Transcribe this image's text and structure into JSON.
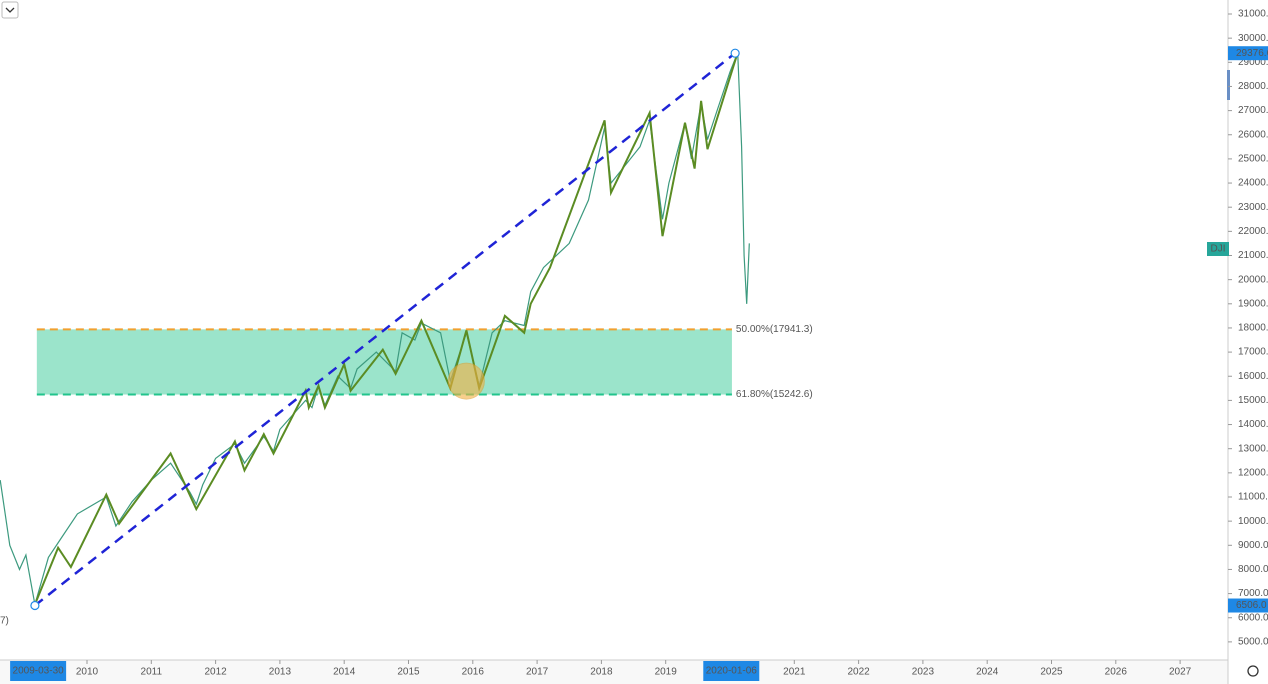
{
  "chart_data": {
    "type": "line",
    "xlim": [
      2008.647,
      2027.745
    ],
    "ylim": [
      4250,
      31580
    ],
    "xticks": [
      2010,
      2011,
      2012,
      2013,
      2014,
      2015,
      2016,
      2017,
      2018,
      2019,
      2021,
      2022,
      2023,
      2024,
      2025,
      2026,
      2027
    ],
    "yticks": [
      {
        "value": 5000,
        "label": "5000.0"
      },
      {
        "value": 6000,
        "label": "6000.0"
      },
      {
        "value": 7000,
        "label": "7000.0"
      },
      {
        "value": 8000,
        "label": "8000.0"
      },
      {
        "value": 9000,
        "label": "9000.0"
      },
      {
        "value": 10000,
        "label": "10000.0"
      },
      {
        "value": 11000,
        "label": "11000.0"
      },
      {
        "value": 12000,
        "label": "12000.0"
      },
      {
        "value": 13000,
        "label": "13000.0"
      },
      {
        "value": 14000,
        "label": "14000.0"
      },
      {
        "value": 15000,
        "label": "15000.0"
      },
      {
        "value": 16000,
        "label": "16000.0"
      },
      {
        "value": 17000,
        "label": "17000.0"
      },
      {
        "value": 18000,
        "label": "18000.0"
      },
      {
        "value": 19000,
        "label": "19000.0"
      },
      {
        "value": 20000,
        "label": "20000.0"
      },
      {
        "value": 21000,
        "label": "21000.0"
      },
      {
        "value": 22000,
        "label": "22000.0"
      },
      {
        "value": 23000,
        "label": "23000.0"
      },
      {
        "value": 24000,
        "label": "24000.0"
      },
      {
        "value": 25000,
        "label": "25000.0"
      },
      {
        "value": 26000,
        "label": "26000.0"
      },
      {
        "value": 27000,
        "label": "27000.0"
      },
      {
        "value": 28000,
        "label": "28000.0"
      },
      {
        "value": 29000,
        "label": "29000.0"
      },
      {
        "value": 30000,
        "label": "30000.0"
      },
      {
        "value": 31000,
        "label": "31000.0"
      }
    ],
    "series": [
      {
        "name": "DJI",
        "color": "#3d9a7f",
        "x": [
          2008.65,
          2008.8,
          2008.95,
          2009.05,
          2009.19,
          2009.4,
          2009.6,
          2009.85,
          2010.3,
          2010.45,
          2010.7,
          2011.0,
          2011.3,
          2011.6,
          2011.7,
          2011.8,
          2012.0,
          2012.3,
          2012.45,
          2012.75,
          2012.9,
          2013.0,
          2013.4,
          2013.5,
          2013.6,
          2013.7,
          2013.9,
          2014.1,
          2014.2,
          2014.5,
          2014.8,
          2014.9,
          2015.1,
          2015.2,
          2015.5,
          2015.65,
          2015.9,
          2016.1,
          2016.3,
          2016.5,
          2016.8,
          2016.9,
          2017.1,
          2017.5,
          2017.8,
          2018.05,
          2018.15,
          2018.3,
          2018.6,
          2018.75,
          2018.95,
          2019.05,
          2019.3,
          2019.4,
          2019.55,
          2019.65,
          2019.8,
          2020.0,
          2020.12,
          2020.18,
          2020.22,
          2020.26,
          2020.3
        ],
        "values": [
          11700,
          9000,
          8000,
          8600,
          6547,
          8500,
          9300,
          10300,
          11000,
          9800,
          10800,
          11700,
          12400,
          11200,
          10700,
          11500,
          12600,
          13200,
          12400,
          13500,
          12900,
          13800,
          15000,
          14700,
          15600,
          14800,
          16000,
          15500,
          16300,
          17000,
          16200,
          17800,
          17500,
          18200,
          17800,
          15800,
          17800,
          15600,
          17800,
          18300,
          18100,
          19500,
          20500,
          21500,
          23300,
          26300,
          24000,
          24500,
          25500,
          26600,
          22500,
          24000,
          26500,
          25000,
          27300,
          25800,
          27000,
          28600,
          29400,
          25500,
          21000,
          19000,
          21500
        ]
      },
      {
        "color": "#5b8c23",
        "x": [
          2009.19,
          2009.55,
          2009.75,
          2010.3,
          2010.5,
          2011.3,
          2011.7,
          2012.3,
          2012.45,
          2012.75,
          2012.9,
          2013.4,
          2013.45,
          2013.6,
          2013.7,
          2014.0,
          2014.1,
          2014.6,
          2014.8,
          2015.2,
          2015.65,
          2015.9,
          2016.1,
          2016.5,
          2016.8,
          2016.9,
          2017.2,
          2018.05,
          2018.15,
          2018.75,
          2018.95,
          2019.3,
          2019.45,
          2019.55,
          2019.65,
          2020.12
        ],
        "values": [
          6547,
          8900,
          8100,
          11100,
          9900,
          12800,
          10500,
          13300,
          12100,
          13600,
          12800,
          15400,
          14700,
          15600,
          14700,
          16500,
          15400,
          17100,
          16100,
          18300,
          15500,
          17900,
          15500,
          18500,
          17800,
          19000,
          20500,
          26600,
          23600,
          26900,
          21800,
          26500,
          24600,
          27400,
          25400,
          29400
        ]
      }
    ],
    "trendline": {
      "x": [
        2009.19,
        2020.08
      ],
      "values": [
        6506,
        29376.6
      ],
      "color": "#1f24d6"
    },
    "fib_x": [
      2009.22,
      2020.03
    ],
    "fib_levels": [
      {
        "value": 17941.3,
        "label": "50.00%(17941.3)",
        "color": "#f0a030"
      },
      {
        "value": 15242.6,
        "label": "61.80%(15242.6)",
        "color": "#22c48c"
      }
    ],
    "highlight": {
      "x": 2015.9,
      "value": 15800
    },
    "price_labels": [
      {
        "value": 29376.6,
        "label": "29376.6"
      },
      {
        "value": 6506,
        "label": "6506.0"
      }
    ],
    "symbol_tag": "DJI",
    "date_labels": [
      {
        "value": 2009.24,
        "label": "2009-03-30"
      },
      {
        "value": 2020.02,
        "label": "2020-01-06"
      }
    ],
    "annotation": "7)"
  }
}
